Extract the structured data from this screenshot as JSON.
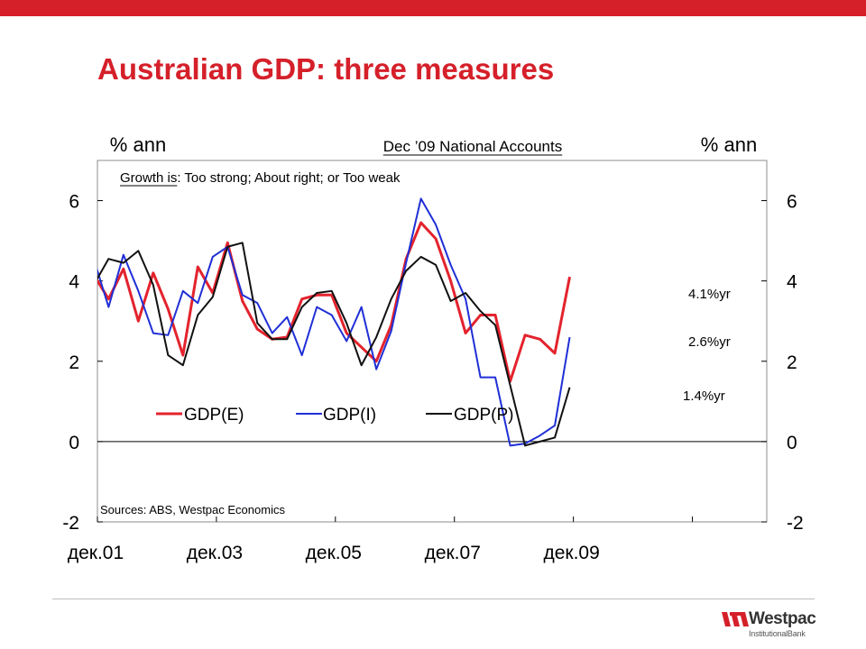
{
  "slide": {
    "title": "Australian GDP: three measures",
    "brand_color": "#d5202a",
    "logo": {
      "word": "Westpac",
      "sub": "InstitutionalBank"
    }
  },
  "chart_data": {
    "type": "line",
    "subtitle": "Dec ’09 National Accounts",
    "ylabel_left": "% ann",
    "ylabel_right": "% ann",
    "note": {
      "underlined": "Growth is",
      "rest": ": Too strong; About right; or Too weak"
    },
    "source": "Sources: ABS, Westpac Economics",
    "ylim": [
      -2,
      7
    ],
    "yticks": [
      -2,
      0,
      2,
      4,
      6
    ],
    "ytick_labels": [
      "-2",
      "0",
      "2",
      "4",
      "6"
    ],
    "xlim": [
      0,
      45
    ],
    "xticks": [
      0,
      8,
      16,
      24,
      32,
      40
    ],
    "xtick_labels": [
      {
        "x": 0,
        "label": "дек.01"
      },
      {
        "x": 8,
        "label": "дек.03"
      },
      {
        "x": 16,
        "label": "дек.05"
      },
      {
        "x": 24,
        "label": "дек.07"
      },
      {
        "x": 32,
        "label": "дек.09"
      }
    ],
    "x_note": "quarters from Sep 2001 to Dec 2009",
    "series": [
      {
        "name": "GDP(E)",
        "color": "#e3232d",
        "values": [
          4.15,
          3.55,
          4.3,
          3.0,
          4.2,
          3.3,
          2.15,
          4.35,
          3.7,
          4.95,
          3.5,
          2.8,
          2.55,
          2.6,
          3.55,
          3.65,
          3.65,
          2.7,
          2.35,
          2.0,
          2.9,
          4.55,
          5.45,
          5.05,
          4.0,
          2.7,
          3.15,
          3.15,
          1.5,
          2.65,
          2.55,
          2.2,
          4.1
        ]
      },
      {
        "name": "GDP(I)",
        "color": "#1f2fd6",
        "values": [
          4.55,
          3.35,
          4.65,
          3.75,
          2.7,
          2.65,
          3.75,
          3.45,
          4.6,
          4.85,
          3.65,
          3.45,
          2.7,
          3.1,
          2.15,
          3.35,
          3.15,
          2.5,
          3.35,
          1.8,
          2.75,
          4.45,
          6.05,
          5.4,
          4.4,
          3.55,
          1.6,
          1.6,
          -0.1,
          -0.05,
          0.15,
          0.4,
          2.6
        ]
      },
      {
        "name": "GDP(P)",
        "color": "#111111",
        "values": [
          3.9,
          4.55,
          4.45,
          4.75,
          3.9,
          2.15,
          1.9,
          3.15,
          3.6,
          4.85,
          4.95,
          2.95,
          2.55,
          2.55,
          3.35,
          3.7,
          3.75,
          2.95,
          1.9,
          2.6,
          3.55,
          4.25,
          4.6,
          4.4,
          3.5,
          3.7,
          3.25,
          2.9,
          1.4,
          -0.1,
          0.0,
          0.1,
          1.35
        ]
      }
    ],
    "annotations": [
      "4.1%yr",
      "2.6%yr",
      "1.4%yr"
    ],
    "legend": "middle-left, horizontal"
  }
}
